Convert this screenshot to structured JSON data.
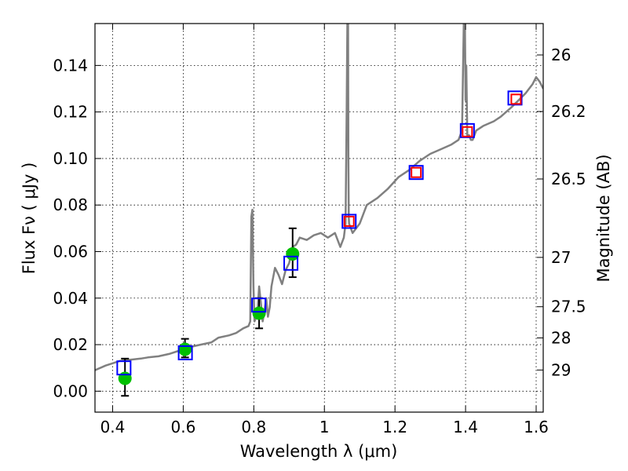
{
  "chart_data": {
    "type": "scatter",
    "xlabel": "Wavelength  λ (μm)",
    "ylabel": "Flux  Fν  ( μJy )",
    "y2label": "Magnitude (AB)",
    "xlim": [
      0.35,
      1.62
    ],
    "ylim": [
      -0.009,
      0.158
    ],
    "grid": true,
    "x_ticks": [
      0.4,
      0.6,
      0.8,
      1.0,
      1.2,
      1.4,
      1.6
    ],
    "x_tick_labels": [
      "0.4",
      "0.6",
      "0.8",
      "1",
      "1.2",
      "1.4",
      "1.6"
    ],
    "y_ticks": [
      0.0,
      0.02,
      0.04,
      0.06,
      0.08,
      0.1,
      0.12,
      0.14
    ],
    "y_tick_labels": [
      "0.00",
      "0.02",
      "0.04",
      "0.06",
      "0.08",
      "0.10",
      "0.12",
      "0.14"
    ],
    "mag_ticks": [
      {
        "label": "26",
        "flux": 0.1445
      },
      {
        "label": "26.2",
        "flux": 0.1202
      },
      {
        "label": "26.5",
        "flux": 0.0912
      },
      {
        "label": "27",
        "flux": 0.0575
      },
      {
        "label": "27.5",
        "flux": 0.0363
      },
      {
        "label": "28",
        "flux": 0.0229
      },
      {
        "label": "29",
        "flux": 0.0091
      }
    ],
    "series": [
      {
        "kind": "line",
        "color": "#808080",
        "x": [
          0.35,
          0.38,
          0.4,
          0.42,
          0.45,
          0.48,
          0.5,
          0.53,
          0.56,
          0.59,
          0.6,
          0.62,
          0.65,
          0.68,
          0.7,
          0.73,
          0.75,
          0.77,
          0.785,
          0.79,
          0.793,
          0.796,
          0.799,
          0.802,
          0.81,
          0.815,
          0.82,
          0.825,
          0.83,
          0.835,
          0.84,
          0.845,
          0.85,
          0.86,
          0.87,
          0.88,
          0.89,
          0.9,
          0.91,
          0.92,
          0.93,
          0.95,
          0.97,
          0.99,
          1.01,
          1.03,
          1.045,
          1.055,
          1.06,
          1.063,
          1.065,
          1.066,
          1.067,
          1.068,
          1.069,
          1.07,
          1.08,
          1.1,
          1.12,
          1.15,
          1.18,
          1.21,
          1.24,
          1.27,
          1.3,
          1.33,
          1.36,
          1.38,
          1.39,
          1.395,
          1.398,
          1.4,
          1.402,
          1.405,
          1.41,
          1.415,
          1.42,
          1.43,
          1.45,
          1.48,
          1.5,
          1.53,
          1.55,
          1.57,
          1.59,
          1.6,
          1.61,
          1.62
        ],
        "y": [
          0.009,
          0.011,
          0.012,
          0.013,
          0.0135,
          0.014,
          0.0145,
          0.015,
          0.016,
          0.0175,
          0.018,
          0.019,
          0.02,
          0.021,
          0.023,
          0.024,
          0.025,
          0.027,
          0.028,
          0.03,
          0.075,
          0.078,
          0.045,
          0.03,
          0.033,
          0.045,
          0.038,
          0.03,
          0.034,
          0.04,
          0.032,
          0.036,
          0.045,
          0.053,
          0.05,
          0.046,
          0.052,
          0.055,
          0.062,
          0.063,
          0.066,
          0.065,
          0.067,
          0.068,
          0.066,
          0.068,
          0.062,
          0.066,
          0.072,
          0.12,
          0.158,
          0.12,
          0.158,
          0.1,
          0.075,
          0.072,
          0.068,
          0.072,
          0.08,
          0.083,
          0.087,
          0.092,
          0.095,
          0.099,
          0.102,
          0.104,
          0.106,
          0.108,
          0.112,
          0.158,
          0.16,
          0.125,
          0.14,
          0.11,
          0.11,
          0.108,
          0.108,
          0.112,
          0.114,
          0.116,
          0.118,
          0.122,
          0.125,
          0.128,
          0.132,
          0.135,
          0.133,
          0.13
        ]
      },
      {
        "kind": "scatter",
        "marker": "circle",
        "color": "#00c000",
        "errorbars": true,
        "points": [
          {
            "x": 0.435,
            "y": 0.0055,
            "err_low": 0.0075,
            "err_high": 0.0085
          },
          {
            "x": 0.605,
            "y": 0.018,
            "err_low": 0.0035,
            "err_high": 0.0045
          },
          {
            "x": 0.815,
            "y": 0.0335,
            "err_low": 0.0065,
            "err_high": 0.0065
          },
          {
            "x": 0.91,
            "y": 0.059,
            "err_low": 0.01,
            "err_high": 0.011
          }
        ]
      },
      {
        "kind": "scatter",
        "marker": "square",
        "color": "#0000ff",
        "points": [
          {
            "x": 0.432,
            "y": 0.01
          },
          {
            "x": 0.606,
            "y": 0.0165
          },
          {
            "x": 0.814,
            "y": 0.037
          },
          {
            "x": 0.905,
            "y": 0.055
          },
          {
            "x": 1.07,
            "y": 0.073
          },
          {
            "x": 1.26,
            "y": 0.094
          },
          {
            "x": 1.405,
            "y": 0.112
          },
          {
            "x": 1.54,
            "y": 0.126
          }
        ]
      },
      {
        "kind": "scatter",
        "marker": "square",
        "color": "#ff0000",
        "points": [
          {
            "x": 1.07,
            "y": 0.073
          },
          {
            "x": 1.26,
            "y": 0.094
          },
          {
            "x": 1.405,
            "y": 0.1115
          },
          {
            "x": 1.543,
            "y": 0.1255
          }
        ]
      }
    ]
  }
}
